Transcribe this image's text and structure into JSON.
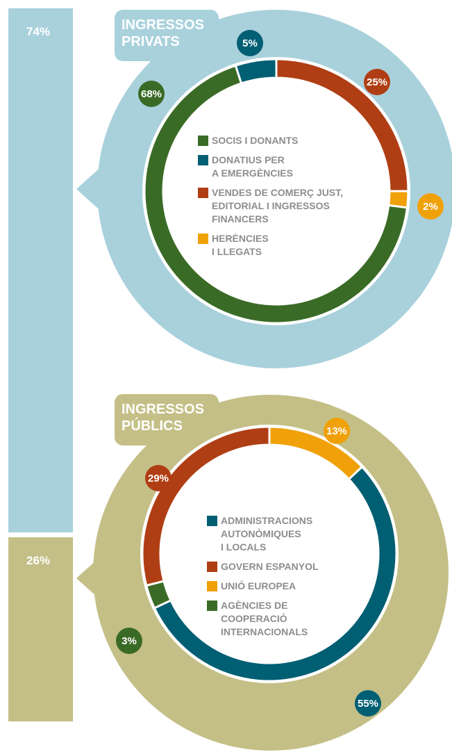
{
  "chart_data": [
    {
      "type": "stacked-bar",
      "values": [
        74,
        26
      ],
      "value_labels": [
        "74%",
        "26%"
      ],
      "colors": [
        "#a9d1dc",
        "#c4bf86"
      ]
    },
    {
      "type": "pie",
      "donut": true,
      "title": "INGRESSOS\nPRIVATS",
      "categories": [
        "SOCIS I DONANTS",
        "DONATIUS PER\nA EMERGÈNCIES",
        "VENDES DE COMERÇ JUST,\nEDITORIAL I INGRESSOS\nFINANCERS",
        "HERÈNCIES\nI LLEGATS"
      ],
      "values": [
        68,
        5,
        25,
        2
      ],
      "value_labels": [
        "68%",
        "5%",
        "25%",
        "2%"
      ],
      "colors": [
        "#3a6b26",
        "#005f73",
        "#b03e14",
        "#f0a10a"
      ]
    },
    {
      "type": "pie",
      "donut": true,
      "title": "INGRESSOS\nPÚBLICS",
      "categories": [
        "ADMINISTRACIONS\nAUTONÒMIQUES\nI LOCALS",
        "GOVERN ESPANYOL",
        "UNIÓ EUROPEA",
        "AGÈNCIES DE\nCOOPERACIÓ\nINTERNACIONALS"
      ],
      "values": [
        55,
        29,
        13,
        3
      ],
      "value_labels": [
        "55%",
        "29%",
        "13%",
        "3%"
      ],
      "colors": [
        "#005f73",
        "#b03e14",
        "#f0a10a",
        "#3a6b26"
      ]
    }
  ]
}
